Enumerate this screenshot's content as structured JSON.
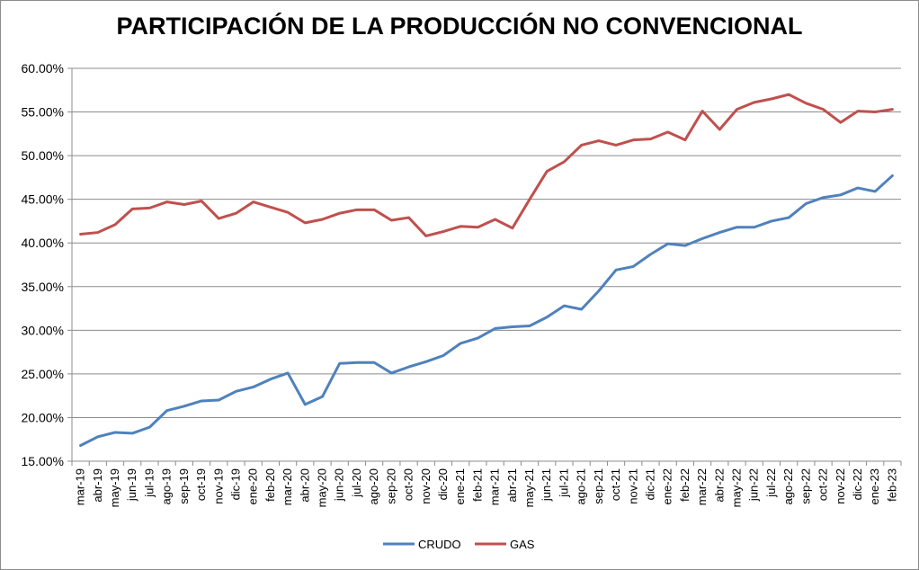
{
  "chart_data": {
    "type": "line",
    "title": "PARTICIPACIÓN DE LA PRODUCCIÓN NO CONVENCIONAL",
    "xlabel": "",
    "ylabel": "",
    "ylim": [
      0.15,
      0.6
    ],
    "yticks": [
      "15.00%",
      "20.00%",
      "25.00%",
      "30.00%",
      "35.00%",
      "40.00%",
      "45.00%",
      "50.00%",
      "55.00%",
      "60.00%"
    ],
    "grid": true,
    "legend_position": "bottom",
    "categories": [
      "mar-19",
      "abr-19",
      "may-19",
      "jun-19",
      "jul-19",
      "ago-19",
      "sep-19",
      "oct-19",
      "nov-19",
      "dic-19",
      "ene-20",
      "feb-20",
      "mar-20",
      "abr-20",
      "may-20",
      "jun-20",
      "jul-20",
      "ago-20",
      "sep-20",
      "oct-20",
      "nov-20",
      "dic-20",
      "ene-21",
      "feb-21",
      "mar-21",
      "abr-21",
      "may-21",
      "jun-21",
      "jul-21",
      "ago-21",
      "sep-21",
      "oct-21",
      "nov-21",
      "dic-21",
      "ene-22",
      "feb-22",
      "mar-22",
      "abr-22",
      "may-22",
      "jun-22",
      "jul-22",
      "ago-22",
      "sep-22",
      "oct-22",
      "nov-22",
      "dic-22",
      "ene-23",
      "feb-23"
    ],
    "series": [
      {
        "name": "CRUDO",
        "color": "#4F81BD",
        "values": [
          0.168,
          0.178,
          0.183,
          0.182,
          0.189,
          0.208,
          0.213,
          0.219,
          0.22,
          0.23,
          0.235,
          0.244,
          0.251,
          0.215,
          0.224,
          0.262,
          0.263,
          0.263,
          0.251,
          0.258,
          0.264,
          0.271,
          0.285,
          0.291,
          0.302,
          0.304,
          0.305,
          0.315,
          0.328,
          0.324,
          0.345,
          0.369,
          0.373,
          0.387,
          0.399,
          0.397,
          0.405,
          0.412,
          0.418,
          0.418,
          0.425,
          0.429,
          0.445,
          0.452,
          0.455,
          0.463,
          0.459,
          0.477
        ]
      },
      {
        "name": "GAS",
        "color": "#C0504D",
        "values": [
          0.41,
          0.412,
          0.421,
          0.439,
          0.44,
          0.447,
          0.444,
          0.448,
          0.428,
          0.434,
          0.447,
          0.441,
          0.435,
          0.423,
          0.427,
          0.434,
          0.438,
          0.438,
          0.426,
          0.429,
          0.408,
          0.413,
          0.419,
          0.418,
          0.427,
          0.417,
          0.45,
          0.482,
          0.493,
          0.512,
          0.517,
          0.512,
          0.518,
          0.519,
          0.527,
          0.518,
          0.551,
          0.53,
          0.553,
          0.561,
          0.565,
          0.57,
          0.56,
          0.553,
          0.538,
          0.551,
          0.55,
          0.553
        ]
      }
    ]
  }
}
